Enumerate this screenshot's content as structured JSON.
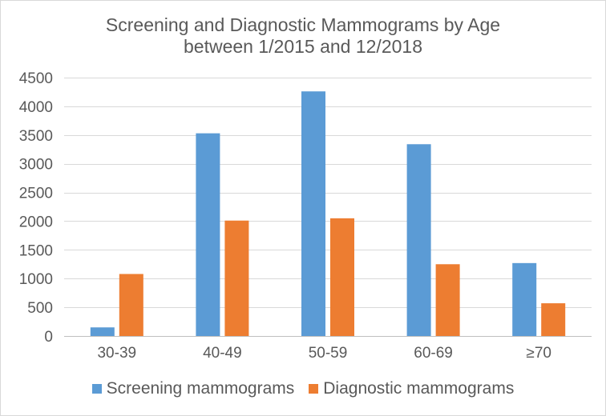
{
  "chart_data": {
    "type": "bar",
    "title_line1": "Screening and Diagnostic Mammograms by Age",
    "title_line2": "between 1/2015 and 12/2018",
    "xlabel": "",
    "ylabel": "",
    "categories": [
      "30-39",
      "40-49",
      "50-59",
      "60-69",
      "≥70"
    ],
    "series": [
      {
        "name": "Screening mammograms",
        "color": "#5b9bd5",
        "values": [
          150,
          3530,
          4260,
          3340,
          1270
        ]
      },
      {
        "name": "Diagnostic mammograms",
        "color": "#ed7d31",
        "values": [
          1080,
          2010,
          2050,
          1250,
          570
        ]
      }
    ],
    "ylim": [
      0,
      4500
    ],
    "yticks": [
      0,
      500,
      1000,
      1500,
      2000,
      2500,
      3000,
      3500,
      4000,
      4500
    ],
    "grid": true,
    "legend_position": "bottom"
  }
}
